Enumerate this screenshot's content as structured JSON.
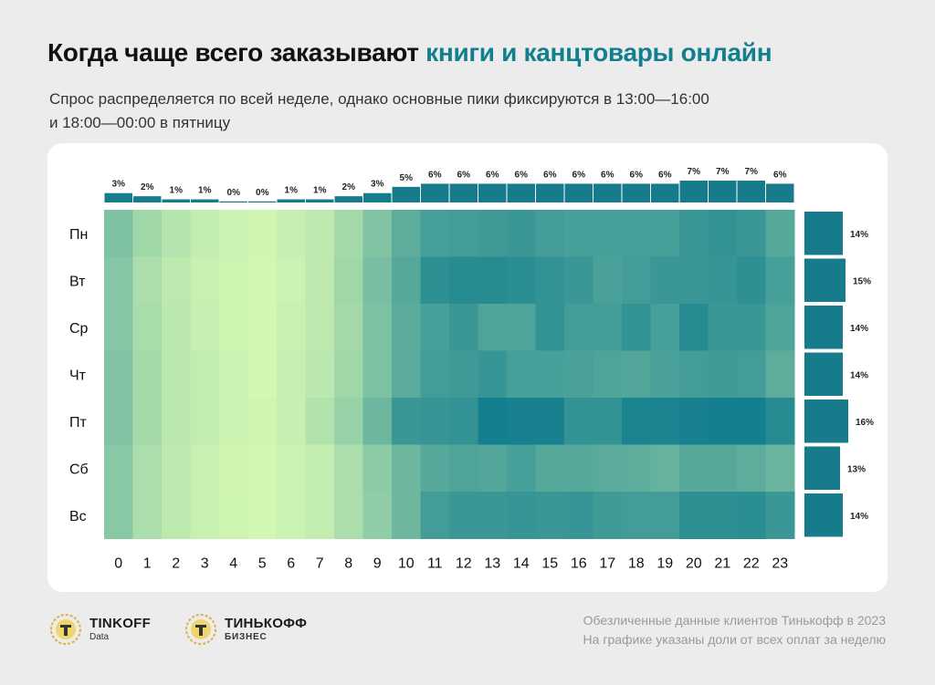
{
  "header": {
    "title_main": "Когда чаще всего заказывают ",
    "title_accent": "книги и канцтовары онлайн",
    "subtitle_line1": "Спрос распределяется по всей неделе, однако основные пики фиксируются в 13:00—16:00",
    "subtitle_line2": "и 18:00—00:00 в пятницу"
  },
  "chart_data": {
    "type": "heatmap",
    "x": [
      "0",
      "1",
      "2",
      "3",
      "4",
      "5",
      "6",
      "7",
      "8",
      "9",
      "10",
      "11",
      "12",
      "13",
      "14",
      "15",
      "16",
      "17",
      "18",
      "19",
      "20",
      "21",
      "22",
      "23"
    ],
    "y": [
      "Пн",
      "Вт",
      "Ср",
      "Чт",
      "Пт",
      "Сб",
      "Вс"
    ],
    "hour_totals": {
      "values": [
        3,
        2,
        1,
        1,
        0,
        0,
        1,
        1,
        2,
        3,
        5,
        6,
        6,
        6,
        6,
        6,
        6,
        6,
        6,
        6,
        7,
        7,
        7,
        6
      ],
      "labels": [
        "3%",
        "2%",
        "1%",
        "1%",
        "0%",
        "0%",
        "1%",
        "1%",
        "2%",
        "3%",
        "5%",
        "6%",
        "6%",
        "6%",
        "6%",
        "6%",
        "6%",
        "6%",
        "6%",
        "6%",
        "7%",
        "7%",
        "7%",
        "6%"
      ]
    },
    "day_totals": {
      "values": [
        14,
        15,
        14,
        14,
        16,
        13,
        14
      ],
      "labels": [
        "14%",
        "15%",
        "14%",
        "14%",
        "16%",
        "13%",
        "14%"
      ]
    },
    "intensity": [
      [
        0.45,
        0.28,
        0.17,
        0.1,
        0.06,
        0.03,
        0.08,
        0.12,
        0.26,
        0.44,
        0.62,
        0.75,
        0.76,
        0.78,
        0.8,
        0.76,
        0.74,
        0.74,
        0.74,
        0.74,
        0.8,
        0.84,
        0.8,
        0.66
      ],
      [
        0.42,
        0.22,
        0.13,
        0.07,
        0.04,
        0.02,
        0.06,
        0.12,
        0.28,
        0.48,
        0.66,
        0.86,
        0.9,
        0.9,
        0.88,
        0.84,
        0.8,
        0.72,
        0.76,
        0.8,
        0.8,
        0.82,
        0.86,
        0.74
      ],
      [
        0.42,
        0.24,
        0.14,
        0.08,
        0.04,
        0.02,
        0.07,
        0.13,
        0.27,
        0.46,
        0.64,
        0.74,
        0.8,
        0.7,
        0.7,
        0.84,
        0.76,
        0.76,
        0.84,
        0.74,
        0.9,
        0.8,
        0.8,
        0.7
      ],
      [
        0.44,
        0.26,
        0.15,
        0.1,
        0.05,
        0.02,
        0.08,
        0.14,
        0.28,
        0.46,
        0.64,
        0.76,
        0.78,
        0.82,
        0.74,
        0.74,
        0.72,
        0.7,
        0.68,
        0.72,
        0.76,
        0.78,
        0.76,
        0.62
      ],
      [
        0.44,
        0.26,
        0.15,
        0.1,
        0.05,
        0.03,
        0.08,
        0.18,
        0.32,
        0.54,
        0.8,
        0.82,
        0.84,
        1.0,
        0.98,
        0.98,
        0.84,
        0.84,
        0.96,
        0.96,
        0.98,
        1.0,
        1.0,
        0.9
      ],
      [
        0.4,
        0.22,
        0.13,
        0.07,
        0.03,
        0.02,
        0.05,
        0.1,
        0.22,
        0.38,
        0.54,
        0.66,
        0.7,
        0.68,
        0.74,
        0.66,
        0.66,
        0.64,
        0.62,
        0.58,
        0.66,
        0.66,
        0.62,
        0.56
      ],
      [
        0.4,
        0.22,
        0.13,
        0.07,
        0.04,
        0.02,
        0.06,
        0.1,
        0.22,
        0.36,
        0.54,
        0.76,
        0.8,
        0.8,
        0.82,
        0.8,
        0.82,
        0.78,
        0.76,
        0.76,
        0.86,
        0.86,
        0.88,
        0.8
      ]
    ],
    "colors": {
      "low": "#d6f9b4",
      "high": "#147f8e",
      "bar": "#167b8a"
    },
    "legend": "none"
  },
  "footer": {
    "logo1_name": "TINKOFF",
    "logo1_sub": "Data",
    "logo2_name": "ТИНЬКОФФ",
    "logo2_sub": "БИЗНЕС",
    "note_line1": "Обезличенные данные клиентов Тинькофф в 2023",
    "note_line2": "На графике указаны доли от всех оплат за неделю"
  }
}
